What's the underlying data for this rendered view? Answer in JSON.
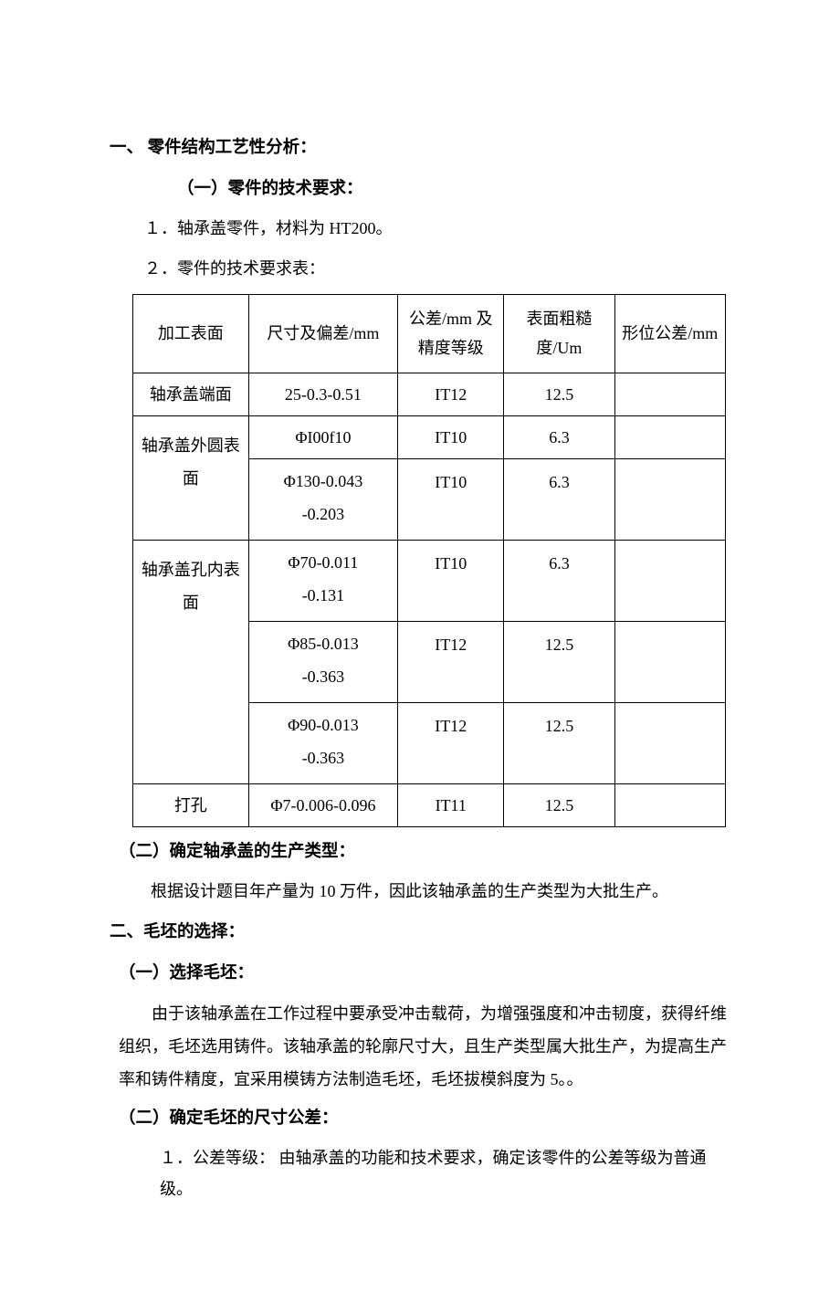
{
  "section1": {
    "heading": "一、  零件结构工艺性分析：",
    "sub1": "（一）零件的技术要求：",
    "item1": "１．轴承盖零件，材料为 HT200。",
    "item2": "２．零件的技术要求表："
  },
  "table": {
    "headers": {
      "col1": "加工表面",
      "col2": "尺寸及偏差/mm",
      "col3": "公差/mm 及精度等级",
      "col4": "表面粗糙度/Um",
      "col5": "形位公差/mm"
    },
    "rows": [
      {
        "c1": "轴承盖端面",
        "c2": "25-0.3-0.51",
        "c3": "IT12",
        "c4": "12.5",
        "c5": ""
      },
      {
        "c1": "轴承盖外圆表面",
        "c2": "ΦI00f10",
        "c3": "IT10",
        "c4": "6.3",
        "c5": ""
      },
      {
        "c1": "",
        "c2": "Φ130-0.043\n-0.203",
        "c3": "IT10",
        "c4": "6.3",
        "c5": ""
      },
      {
        "c1": "轴承盖孔内表面",
        "c2": "Φ70-0.011\n-0.131",
        "c3": "IT10",
        "c4": "6.3",
        "c5": ""
      },
      {
        "c1": "",
        "c2": "Φ85-0.013\n-0.363",
        "c3": "IT12",
        "c4": "12.5",
        "c5": ""
      },
      {
        "c1": "",
        "c2": "Φ90-0.013\n-0.363",
        "c3": "IT12",
        "c4": "12.5",
        "c5": ""
      },
      {
        "c1": "打孔",
        "c2": "Φ7-0.006-0.096",
        "c3": "IT11",
        "c4": "12.5",
        "c5": ""
      }
    ]
  },
  "section1b": {
    "sub2": "（二）确定轴承盖的生产类型：",
    "text": "根据设计题目年产量为 10 万件，因此该轴承盖的生产类型为大批生产。"
  },
  "section2": {
    "heading": "二、毛坯的选择：",
    "sub1": "（一）选择毛坯：",
    "text1": "由于该轴承盖在工作过程中要承受冲击载荷，为增强强度和冲击韧度，获得纤维组织，毛坯选用铸件。该轴承盖的轮廓尺寸大，且生产类型属大批生产，为提高生产率和铸件精度，宜采用模铸方法制造毛坯，毛坯拔模斜度为 5。。",
    "sub2": "（二）确定毛坯的尺寸公差：",
    "item1": "１．公差等级： 由轴承盖的功能和技术要求，确定该零件的公差等级为普通级。"
  }
}
